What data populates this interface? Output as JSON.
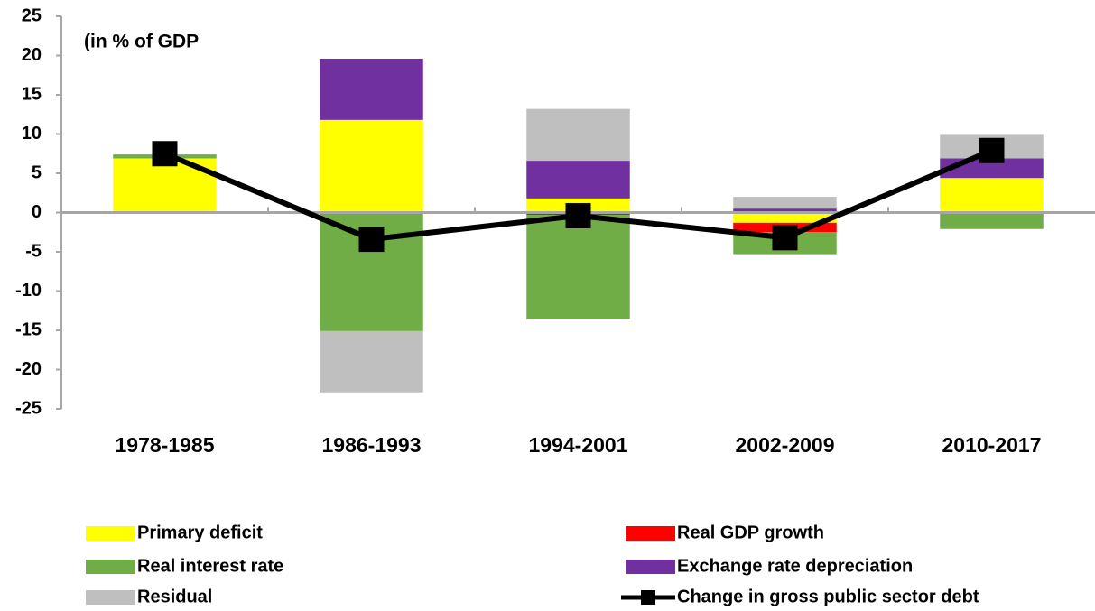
{
  "chart_data": {
    "type": "bar",
    "stacked": true,
    "annotation": "(in % of GDP",
    "categories": [
      "1978-1985",
      "1986-1993",
      "1994-2001",
      "2002-2009",
      "2010-2017"
    ],
    "series": [
      {
        "name": "Primary deficit",
        "color": "#ffff00",
        "values": [
          6.9,
          11.8,
          1.8,
          -1.3,
          4.4
        ]
      },
      {
        "name": "Real GDP growth",
        "color": "#ff0000",
        "values": [
          0,
          0,
          -0.3,
          -1.2,
          0
        ]
      },
      {
        "name": "Real interest rate",
        "color": "#70ad47",
        "values": [
          0.5,
          -15.1,
          -13.3,
          -2.8,
          -2.1
        ]
      },
      {
        "name": "Exchange rate depreciation",
        "color": "#7030a0",
        "values": [
          0,
          7.8,
          4.8,
          0.5,
          2.5
        ]
      },
      {
        "name": "Residual",
        "color": "#bfbfbf",
        "values": [
          0,
          -7.8,
          6.6,
          1.5,
          3.0
        ]
      },
      {
        "name": "Change in gross public sector debt",
        "color": "#000000",
        "type": "line",
        "values": [
          7.5,
          -3.4,
          -0.4,
          -3.2,
          7.9
        ]
      }
    ],
    "ylim": [
      -25,
      25
    ],
    "yticks": [
      -25,
      -20,
      -15,
      -10,
      -5,
      0,
      5,
      10,
      15,
      20,
      25
    ],
    "grid": false,
    "legend": "bottom"
  }
}
